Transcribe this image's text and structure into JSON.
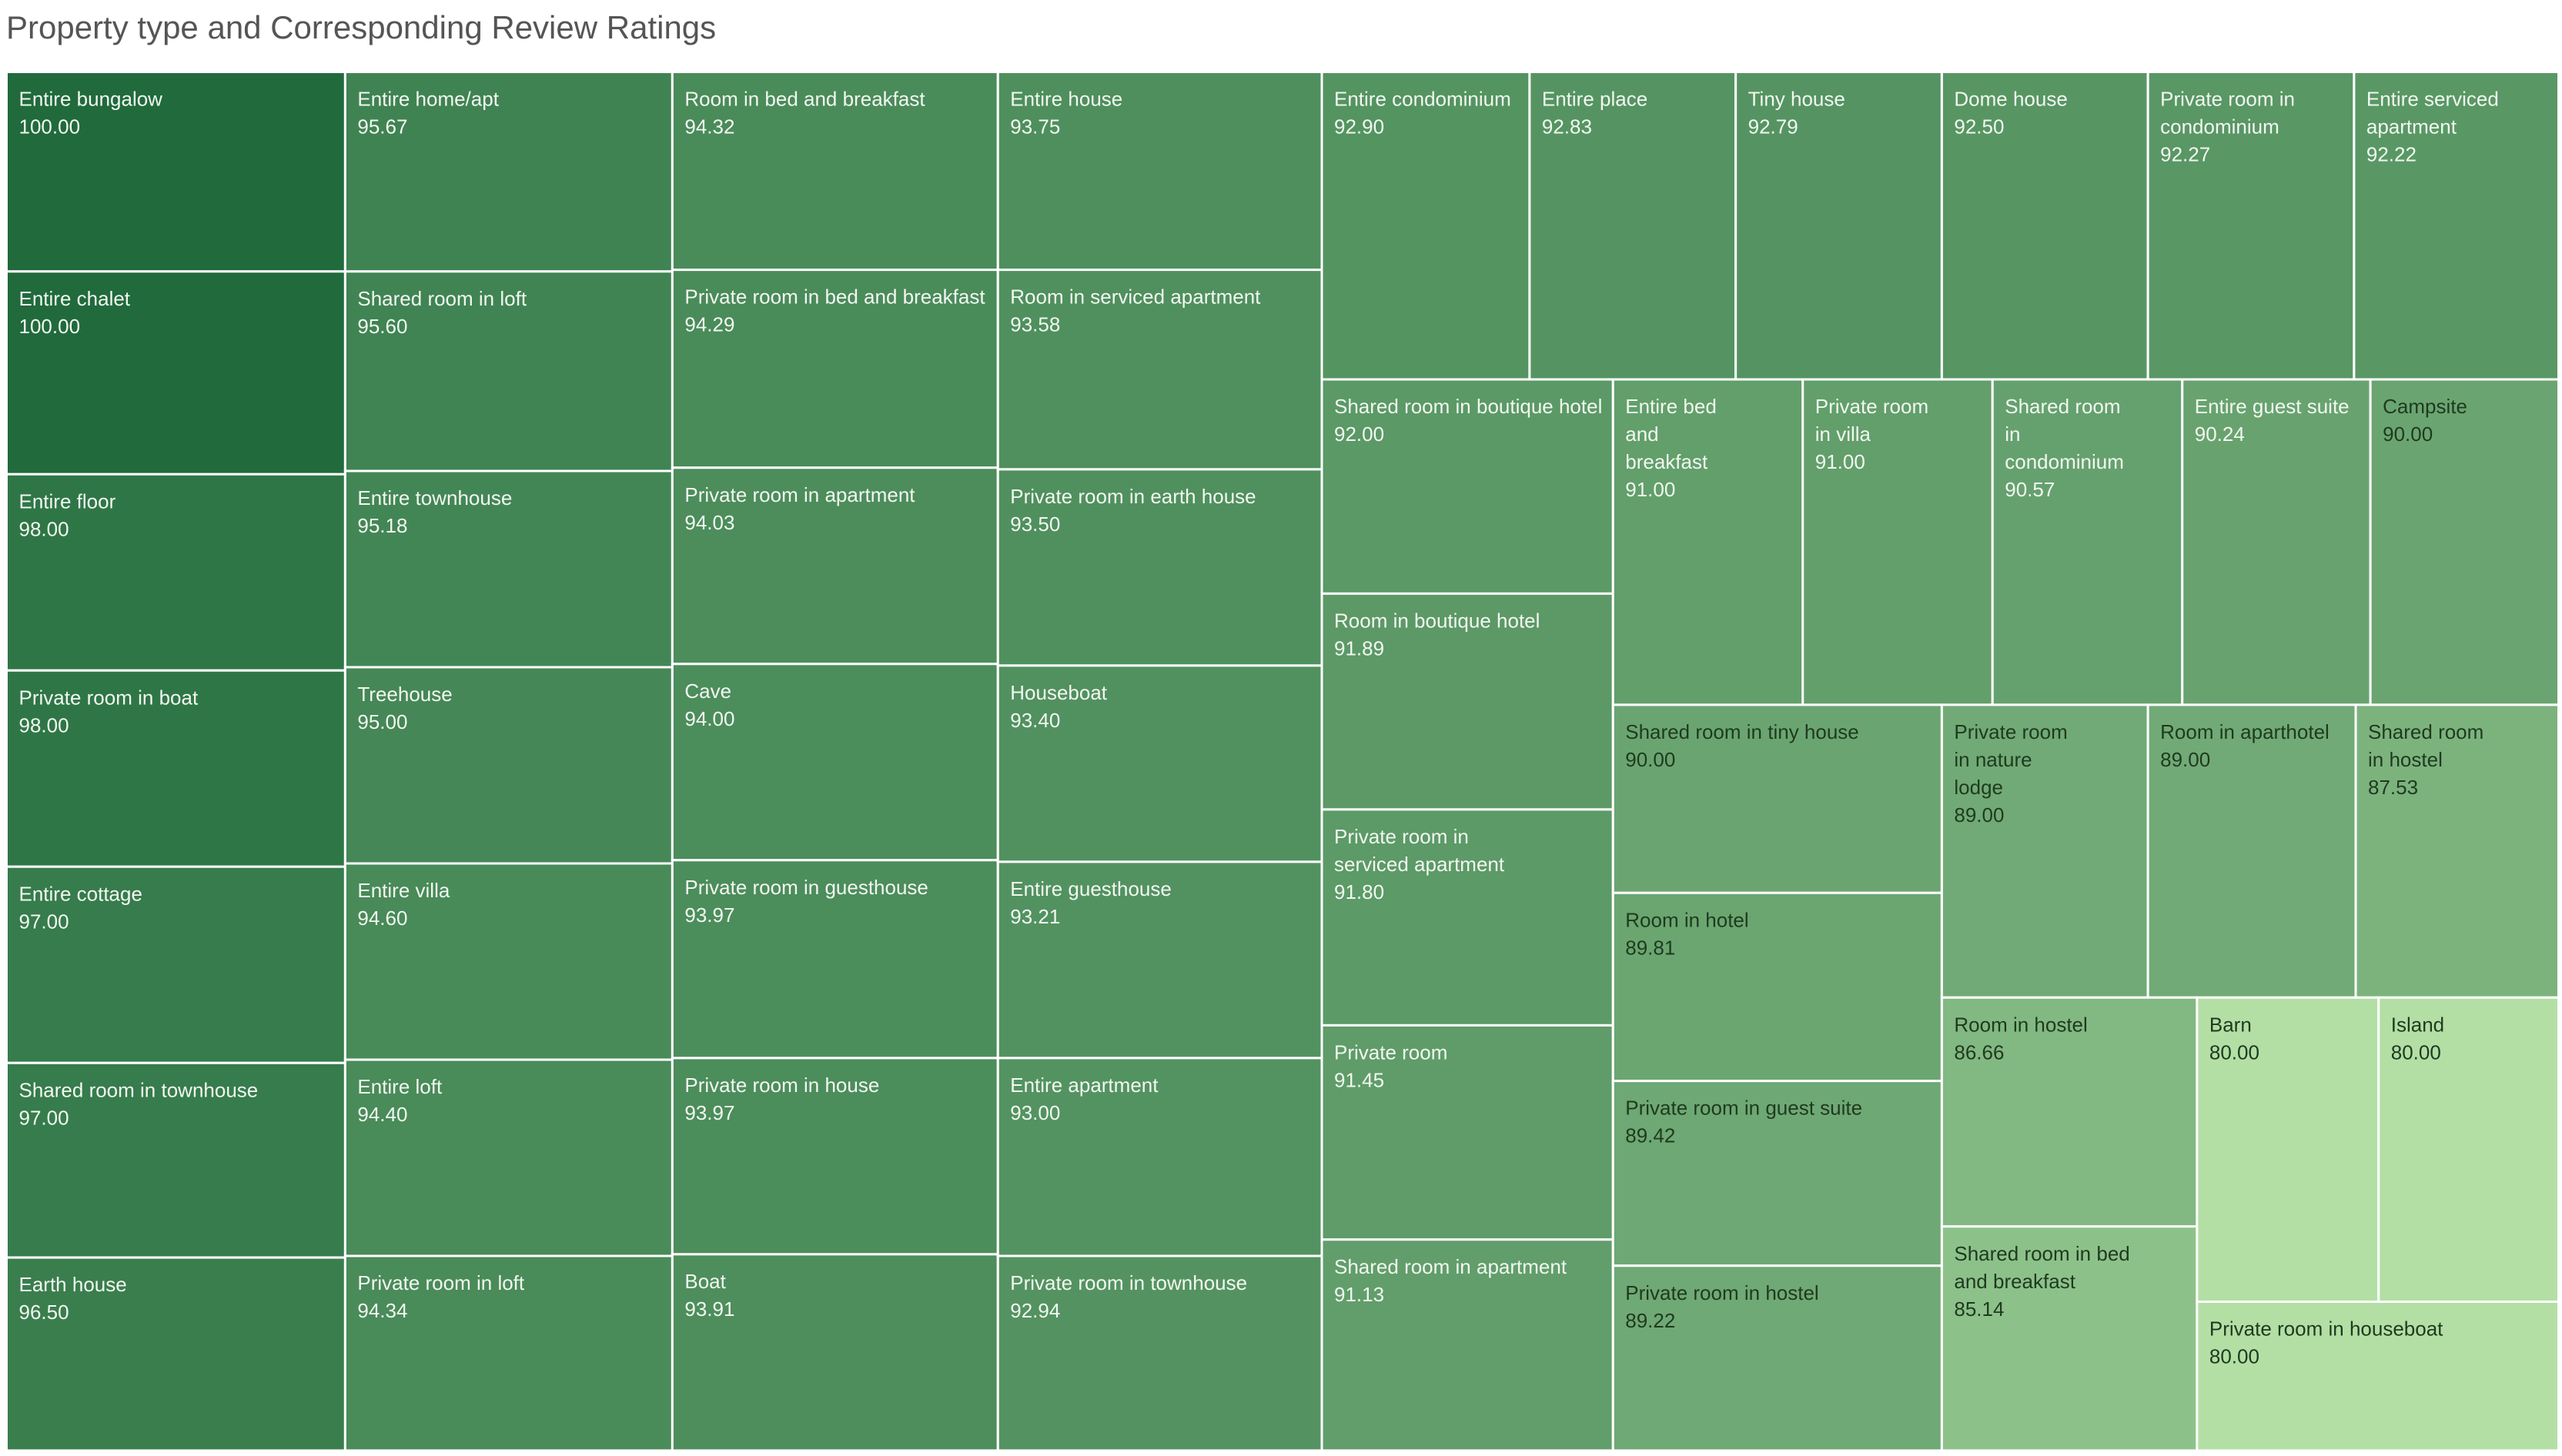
{
  "title": "Property type and Corresponding Review Ratings",
  "chart_data": {
    "type": "treemap",
    "title": "Property type and Corresponding Review Ratings",
    "color_scale": {
      "min_value": 80,
      "max_value": 100,
      "min_color": "#b3dfa5",
      "max_color": "#206a3c"
    },
    "items": [
      {
        "label": "Entire bungalow",
        "value": "100.00"
      },
      {
        "label": "Entire chalet",
        "value": "100.00"
      },
      {
        "label": "Entire floor",
        "value": "98.00"
      },
      {
        "label": "Private room in boat",
        "value": "98.00"
      },
      {
        "label": "Entire cottage",
        "value": "97.00"
      },
      {
        "label": "Shared room in townhouse",
        "value": "97.00"
      },
      {
        "label": "Earth house",
        "value": "96.50"
      },
      {
        "label": "Entire home/apt",
        "value": "95.67"
      },
      {
        "label": "Shared room in loft",
        "value": "95.60"
      },
      {
        "label": "Entire townhouse",
        "value": "95.18"
      },
      {
        "label": "Treehouse",
        "value": "95.00"
      },
      {
        "label": "Entire villa",
        "value": "94.60"
      },
      {
        "label": "Entire loft",
        "value": "94.40"
      },
      {
        "label": "Private room in loft",
        "value": "94.34"
      },
      {
        "label": "Room in bed and breakfast",
        "value": "94.32"
      },
      {
        "label": "Private room in bed and breakfast",
        "value": "94.29"
      },
      {
        "label": "Private room in apartment",
        "value": "94.03"
      },
      {
        "label": "Cave",
        "value": "94.00"
      },
      {
        "label": "Private room in guesthouse",
        "value": "93.97"
      },
      {
        "label": "Private room in house",
        "value": "93.97"
      },
      {
        "label": "Boat",
        "value": "93.91"
      },
      {
        "label": "Entire house",
        "value": "93.75"
      },
      {
        "label": "Room in serviced apartment",
        "value": "93.58"
      },
      {
        "label": "Private room in earth house",
        "value": "93.50"
      },
      {
        "label": "Houseboat",
        "value": "93.40"
      },
      {
        "label": "Entire guesthouse",
        "value": "93.21"
      },
      {
        "label": "Entire apartment",
        "value": "93.00"
      },
      {
        "label": "Private room in townhouse",
        "value": "92.94"
      },
      {
        "label": "Entire condominium",
        "value": "92.90"
      },
      {
        "label": "Entire place",
        "value": "92.83"
      },
      {
        "label": "Tiny house",
        "value": "92.79"
      },
      {
        "label": "Dome house",
        "value": "92.50"
      },
      {
        "label": "Private room in condominium",
        "value": "92.27"
      },
      {
        "label": "Entire serviced apartment",
        "value": "92.22"
      },
      {
        "label": "Shared room in boutique hotel",
        "value": "92.00"
      },
      {
        "label": "Room in boutique hotel",
        "value": "91.89"
      },
      {
        "label": "Private room in serviced apartment",
        "value": "91.80"
      },
      {
        "label": "Private room",
        "value": "91.45"
      },
      {
        "label": "Shared room in apartment",
        "value": "91.13"
      },
      {
        "label": "Entire bed and breakfast",
        "value": "91.00"
      },
      {
        "label": "Private room in villa",
        "value": "91.00"
      },
      {
        "label": "Shared room in condominium",
        "value": "90.57"
      },
      {
        "label": "Entire guest suite",
        "value": "90.24"
      },
      {
        "label": "Campsite",
        "value": "90.00"
      },
      {
        "label": "Shared room in tiny house",
        "value": "90.00"
      },
      {
        "label": "Room in hotel",
        "value": "89.81"
      },
      {
        "label": "Private room in guest suite",
        "value": "89.42"
      },
      {
        "label": "Private room in hostel",
        "value": "89.22"
      },
      {
        "label": "Private room in nature lodge",
        "value": "89.00"
      },
      {
        "label": "Room in aparthotel",
        "value": "89.00"
      },
      {
        "label": "Shared room in hostel",
        "value": "87.53"
      },
      {
        "label": "Room in hostel",
        "value": "86.66"
      },
      {
        "label": "Shared room in bed and breakfast",
        "value": "85.14"
      },
      {
        "label": "Barn",
        "value": "80.00"
      },
      {
        "label": "Island",
        "value": "80.00"
      },
      {
        "label": "Private room in houseboat",
        "value": "80.00"
      }
    ]
  }
}
